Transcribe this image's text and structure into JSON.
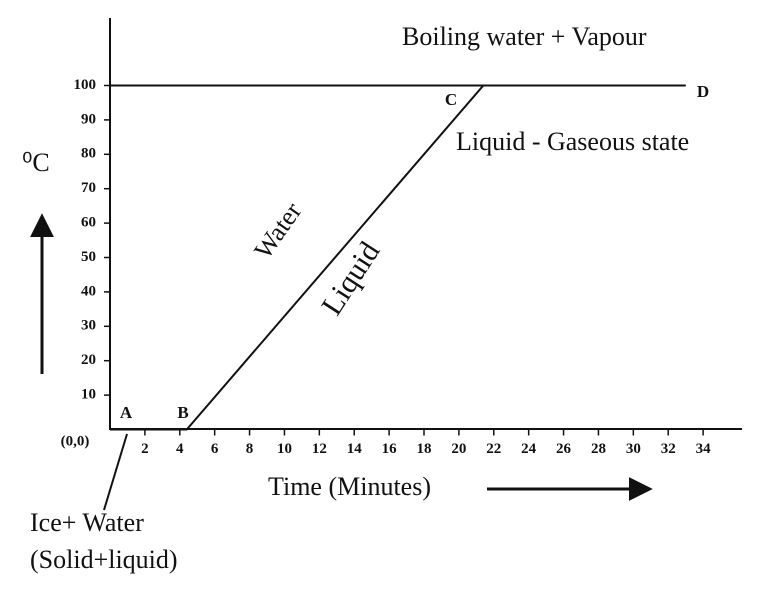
{
  "chart_data": {
    "type": "line",
    "x": [
      0,
      4.4,
      21.4,
      33
    ],
    "values": [
      0,
      0,
      100,
      100
    ],
    "color": "#111111",
    "hline": 100,
    "xlim": [
      0,
      36
    ],
    "xticks": [
      2,
      4,
      6,
      8,
      10,
      12,
      14,
      16,
      18,
      20,
      22,
      24,
      26,
      28,
      30,
      32,
      34
    ],
    "ylim": [
      0,
      120
    ],
    "yticks": [
      10,
      20,
      30,
      40,
      50,
      60,
      70,
      80,
      90,
      100
    ],
    "xlabel": "Time (Minutes)",
    "ylabel": "⁰C",
    "origin_label": "(0,0)",
    "point_labels": [
      "A",
      "B",
      "C",
      "D"
    ],
    "annotations": [
      "Boiling water + Vapour",
      "Liquid - Gaseous state",
      "Water",
      "Liquid",
      "Ice+ Water",
      "(Solid+liquid)"
    ]
  }
}
